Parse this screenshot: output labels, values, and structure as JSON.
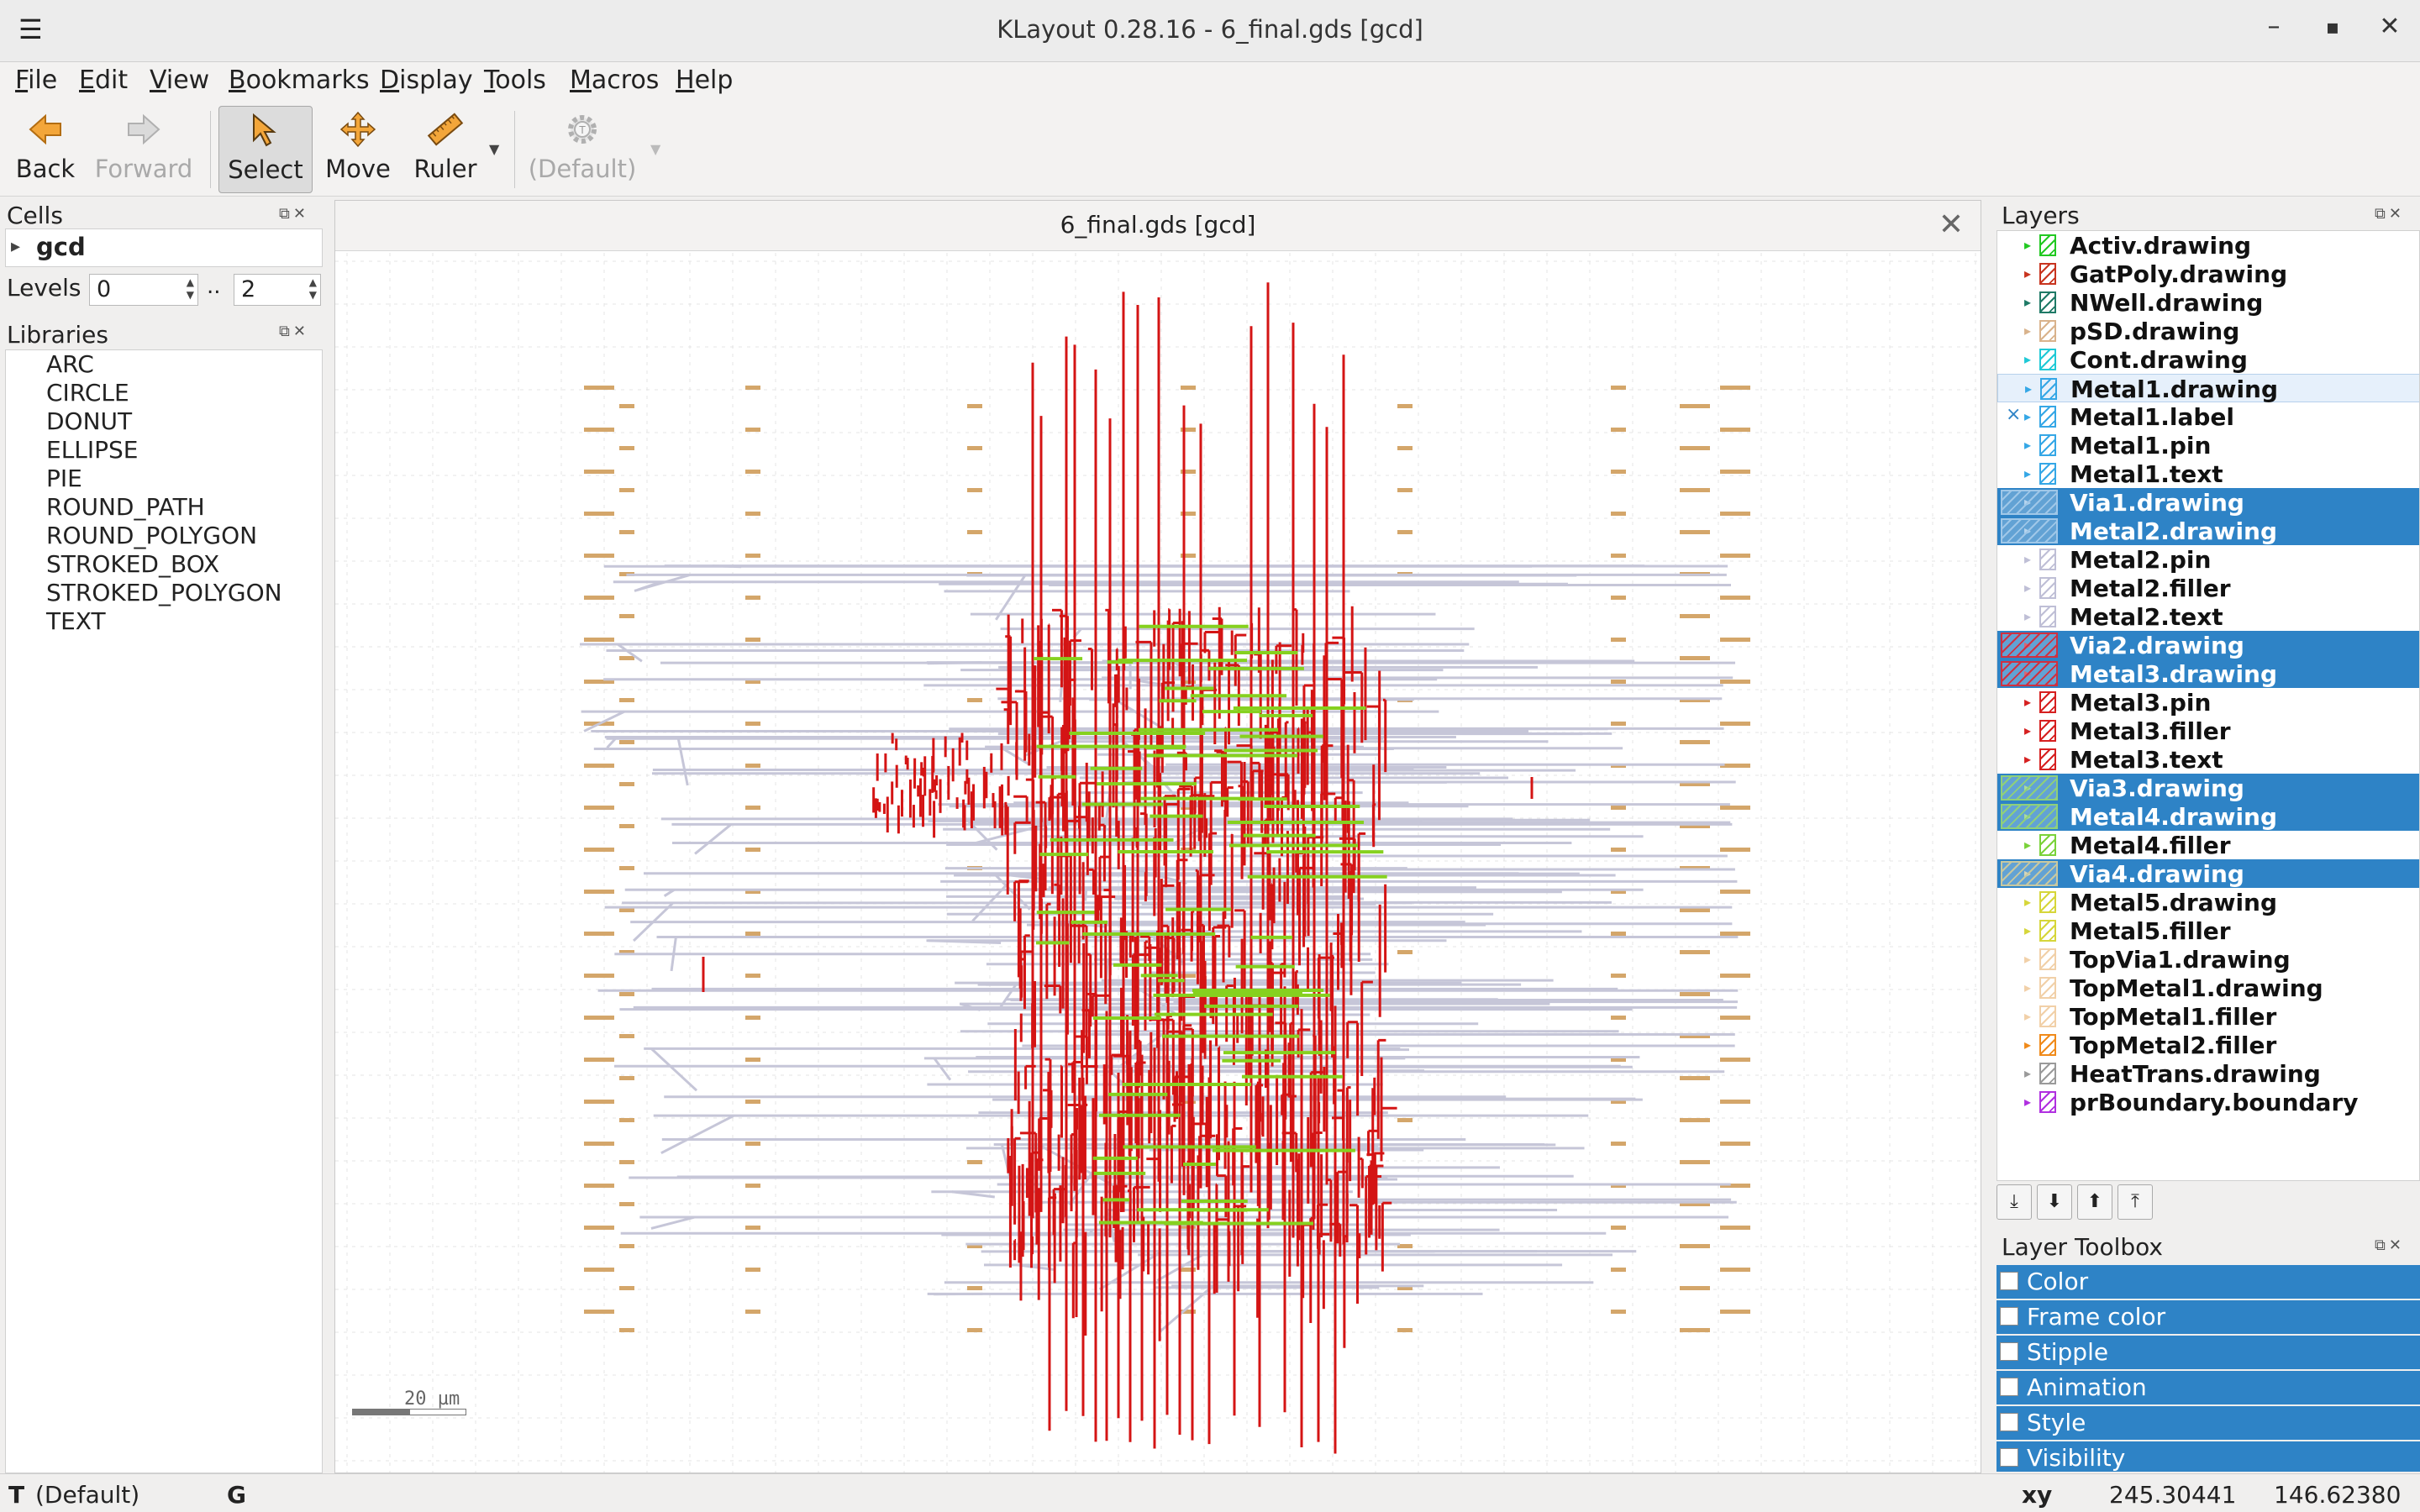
{
  "window": {
    "title": "KLayout 0.28.16 - 6_final.gds [gcd]",
    "minimize": "–",
    "maximize": "▪",
    "close": "✕"
  },
  "menu": [
    "File",
    "Edit",
    "View",
    "Bookmarks",
    "Display",
    "Tools",
    "Macros",
    "Help"
  ],
  "toolbar": {
    "back": "Back",
    "forward": "Forward",
    "select": "Select",
    "move": "Move",
    "ruler": "Ruler",
    "macro": "(Default)"
  },
  "cells": {
    "header": "Cells",
    "top_cell": "gcd",
    "levels_label": "Levels",
    "levels_from": "0",
    "levels_sep": "..",
    "levels_to": "2"
  },
  "libraries": {
    "header": "Libraries",
    "items": [
      "ARC",
      "CIRCLE",
      "DONUT",
      "ELLIPSE",
      "PIE",
      "ROUND_PATH",
      "ROUND_POLYGON",
      "STROKED_BOX",
      "STROKED_POLYGON",
      "TEXT"
    ]
  },
  "document": {
    "tab_title": "6_final.gds [gcd]",
    "scale_label": "20 µm"
  },
  "layers": {
    "header": "Layers",
    "items": [
      {
        "name": "Activ.drawing",
        "color": "#22c922",
        "selected": false
      },
      {
        "name": "GatPoly.drawing",
        "color": "#c8341f",
        "selected": false
      },
      {
        "name": "NWell.drawing",
        "color": "#1f7a66",
        "selected": false
      },
      {
        "name": "pSD.drawing",
        "color": "#d9b38c",
        "selected": false
      },
      {
        "name": "Cont.drawing",
        "color": "#1fc9d6",
        "selected": false
      },
      {
        "name": "Metal1.drawing",
        "color": "#35a7e6",
        "selected": false,
        "hover": true
      },
      {
        "name": "Metal1.label",
        "color": "#35a7e6",
        "selected": false,
        "prefix": "×"
      },
      {
        "name": "Metal1.pin",
        "color": "#35a7e6",
        "selected": false
      },
      {
        "name": "Metal1.text",
        "color": "#35a7e6",
        "selected": false
      },
      {
        "name": "Via1.drawing",
        "color": "#9fc7e8",
        "selected": true
      },
      {
        "name": "Metal2.drawing",
        "color": "#9fc7e8",
        "selected": true
      },
      {
        "name": "Metal2.pin",
        "color": "#bfbfd6",
        "selected": false
      },
      {
        "name": "Metal2.filler",
        "color": "#bfbfd6",
        "selected": false
      },
      {
        "name": "Metal2.text",
        "color": "#bfbfd6",
        "selected": false
      },
      {
        "name": "Via2.drawing",
        "color": "#d03040",
        "selected": true
      },
      {
        "name": "Metal3.drawing",
        "color": "#d03040",
        "selected": true
      },
      {
        "name": "Metal3.pin",
        "color": "#d62020",
        "selected": false
      },
      {
        "name": "Metal3.filler",
        "color": "#d62020",
        "selected": false
      },
      {
        "name": "Metal3.text",
        "color": "#d62020",
        "selected": false
      },
      {
        "name": "Via3.drawing",
        "color": "#8fd07a",
        "selected": true
      },
      {
        "name": "Metal4.drawing",
        "color": "#8fd07a",
        "selected": true
      },
      {
        "name": "Metal4.filler",
        "color": "#7ad23a",
        "selected": false
      },
      {
        "name": "Via4.drawing",
        "color": "#c8c8a0",
        "selected": true
      },
      {
        "name": "Metal5.drawing",
        "color": "#d6d63a",
        "selected": false
      },
      {
        "name": "Metal5.filler",
        "color": "#d6d63a",
        "selected": false
      },
      {
        "name": "TopVia1.drawing",
        "color": "#f1d0a8",
        "selected": false
      },
      {
        "name": "TopMetal1.drawing",
        "color": "#f1d0a8",
        "selected": false
      },
      {
        "name": "TopMetal1.filler",
        "color": "#f1d0a8",
        "selected": false
      },
      {
        "name": "TopMetal2.filler",
        "color": "#f08a1a",
        "selected": false
      },
      {
        "name": "HeatTrans.drawing",
        "color": "#9a9a9a",
        "selected": false
      },
      {
        "name": "prBoundary.boundary",
        "color": "#b030e0",
        "selected": false
      }
    ]
  },
  "layer_toolbox": {
    "header": "Layer Toolbox",
    "items": [
      "Color",
      "Frame color",
      "Stipple",
      "Animation",
      "Style",
      "Visibility"
    ]
  },
  "status": {
    "left_icon": "T",
    "left_text": "(Default)",
    "grid_letter": "G",
    "coord_label": "xy",
    "x": "245.30441",
    "y": "146.62380"
  }
}
